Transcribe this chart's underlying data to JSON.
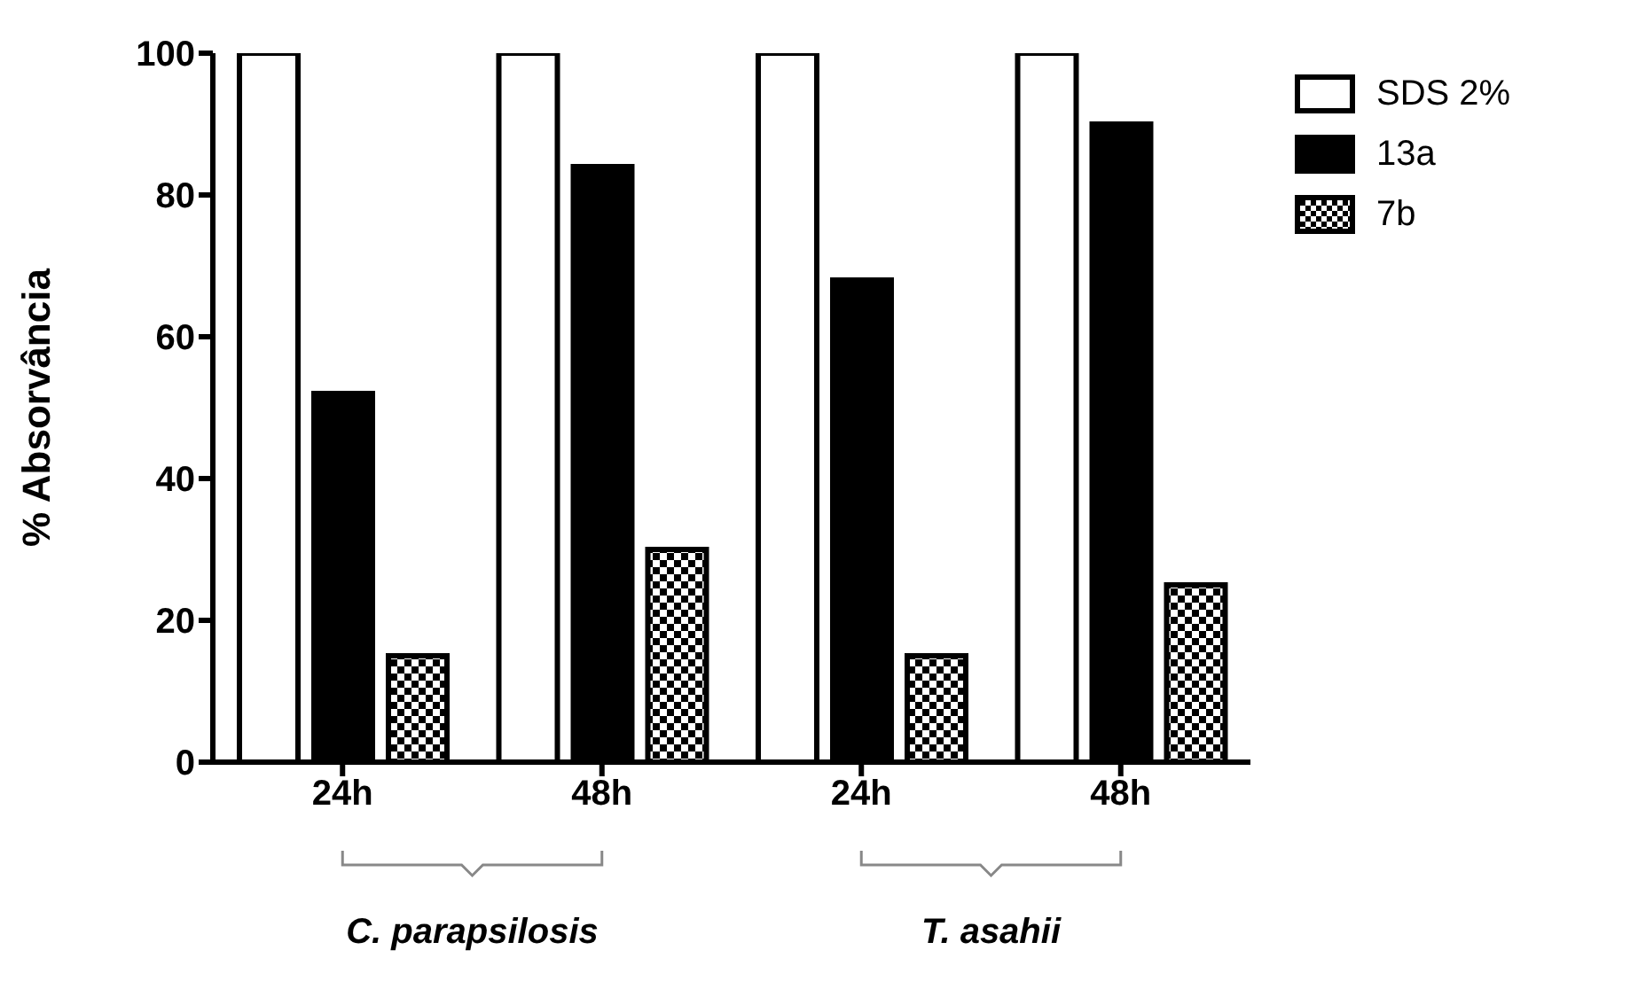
{
  "chart_data": {
    "type": "bar",
    "ylabel": "% Absorvância",
    "categories": [
      "24h",
      "48h",
      "24h",
      "48h"
    ],
    "series": [
      {
        "name": "SDS 2%",
        "color": "#ffffff",
        "values": [
          100,
          100,
          100,
          100
        ]
      },
      {
        "name": "13a",
        "color": "#000000",
        "values": [
          52,
          84,
          68,
          90
        ]
      },
      {
        "name": "7b",
        "color": "#000000",
        "values": [
          15,
          30,
          15,
          25
        ]
      }
    ],
    "ylim": [
      0,
      100
    ],
    "yticks": [
      0,
      20,
      40,
      60,
      80,
      100
    ],
    "grid": false,
    "legend": "top right",
    "annotations": [
      "C. parapsilosis",
      "T. asahii"
    ]
  }
}
